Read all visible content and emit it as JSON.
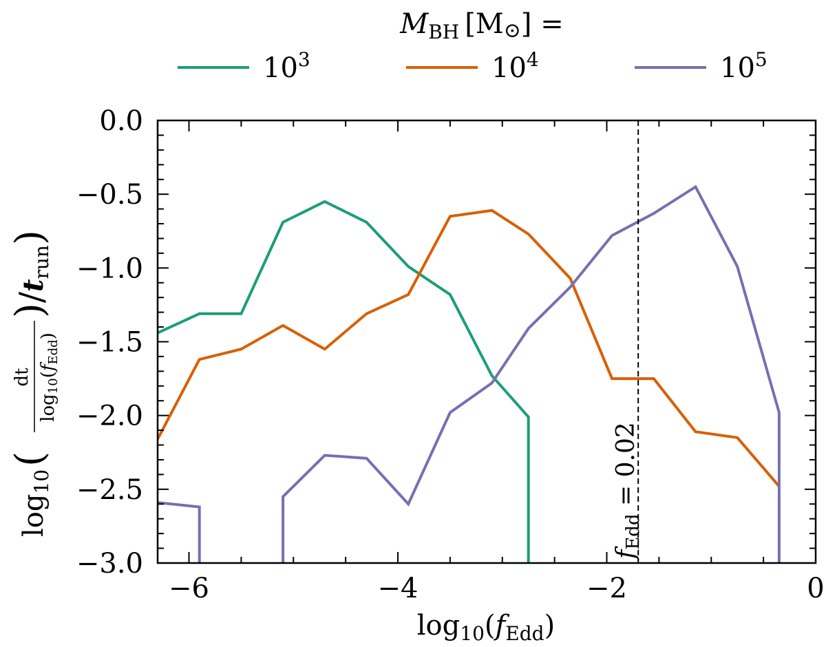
{
  "chart_data": {
    "type": "line",
    "title": "",
    "legend": {
      "title_symbol": "M",
      "title_sub": "BH",
      "title_unit": "[M",
      "title_unit_symbol": "⊙",
      "title_tail": "] =",
      "placement": "top, above plot, horizontal"
    },
    "xlabel": {
      "prefix": "log",
      "sub": "10",
      "open": "(",
      "var": "f",
      "var_sub": "Edd",
      "close": ")"
    },
    "ylabel": {
      "prefix": "log",
      "sub": "10",
      "num": "dt",
      "den_prefix": "log",
      "den_sub": "10",
      "den_open": "(",
      "den_var": "f",
      "den_var_sub": "Edd",
      "den_close": ")",
      "slash": "/",
      "tvar": "t",
      "tsub": "run"
    },
    "xlim": [
      -6.3,
      0
    ],
    "ylim": [
      -3.0,
      0.0
    ],
    "xticks": [
      {
        "v": -6,
        "label": "−6"
      },
      {
        "v": -4,
        "label": "−4"
      },
      {
        "v": -2,
        "label": "−2"
      },
      {
        "v": 0,
        "label": "0"
      }
    ],
    "yticks": [
      {
        "v": 0,
        "label": "0.0"
      },
      {
        "v": -0.5,
        "label": "−0.5"
      },
      {
        "v": -1,
        "label": "−1.0"
      },
      {
        "v": -1.5,
        "label": "−1.5"
      },
      {
        "v": -2,
        "label": "−2.0"
      },
      {
        "v": -2.5,
        "label": "−2.5"
      },
      {
        "v": -3,
        "label": "−3.0"
      }
    ],
    "vline": {
      "x": -1.699,
      "style": "dashed",
      "label_var": "f",
      "label_sub": "Edd",
      "label_text": " = 0.02"
    },
    "series": [
      {
        "name": "10",
        "exp": "3",
        "color": "#1b9e77",
        "segments": [
          [
            [
              -6.3,
              -1.44
            ],
            [
              -5.9,
              -1.31
            ],
            [
              -5.5,
              -1.31
            ],
            [
              -5.1,
              -0.69
            ],
            [
              -4.7,
              -0.55
            ],
            [
              -4.3,
              -0.69
            ],
            [
              -3.9,
              -0.99
            ],
            [
              -3.5,
              -1.18
            ],
            [
              -3.1,
              -1.73
            ],
            [
              -2.75,
              -2.01
            ],
            [
              -2.75,
              -3.0
            ]
          ]
        ]
      },
      {
        "name": "10",
        "exp": "4",
        "color": "#d95f02",
        "segments": [
          [
            [
              -6.3,
              -2.16
            ],
            [
              -5.9,
              -1.62
            ],
            [
              -5.5,
              -1.55
            ],
            [
              -5.1,
              -1.39
            ],
            [
              -4.7,
              -1.55
            ],
            [
              -4.3,
              -1.31
            ],
            [
              -3.9,
              -1.18
            ],
            [
              -3.5,
              -0.65
            ],
            [
              -3.1,
              -0.61
            ],
            [
              -2.75,
              -0.77
            ],
            [
              -2.35,
              -1.07
            ],
            [
              -1.95,
              -1.75
            ],
            [
              -1.55,
              -1.75
            ],
            [
              -1.15,
              -2.11
            ],
            [
              -0.75,
              -2.15
            ],
            [
              -0.35,
              -2.48
            ]
          ]
        ]
      },
      {
        "name": "10",
        "exp": "5",
        "color": "#7570b3",
        "segments": [
          [
            [
              -6.3,
              -2.59
            ],
            [
              -5.9,
              -2.62
            ],
            [
              -5.9,
              -3.0
            ]
          ],
          [
            [
              -5.1,
              -3.0
            ],
            [
              -5.1,
              -2.55
            ],
            [
              -4.7,
              -2.27
            ],
            [
              -4.3,
              -2.29
            ],
            [
              -3.9,
              -2.6
            ],
            [
              -3.5,
              -1.98
            ],
            [
              -3.1,
              -1.78
            ],
            [
              -2.75,
              -1.41
            ],
            [
              -2.35,
              -1.13
            ],
            [
              -1.95,
              -0.78
            ],
            [
              -1.55,
              -0.63
            ],
            [
              -1.15,
              -0.45
            ],
            [
              -0.75,
              -0.99
            ],
            [
              -0.35,
              -1.98
            ],
            [
              -0.35,
              -3.0
            ]
          ]
        ]
      }
    ]
  }
}
